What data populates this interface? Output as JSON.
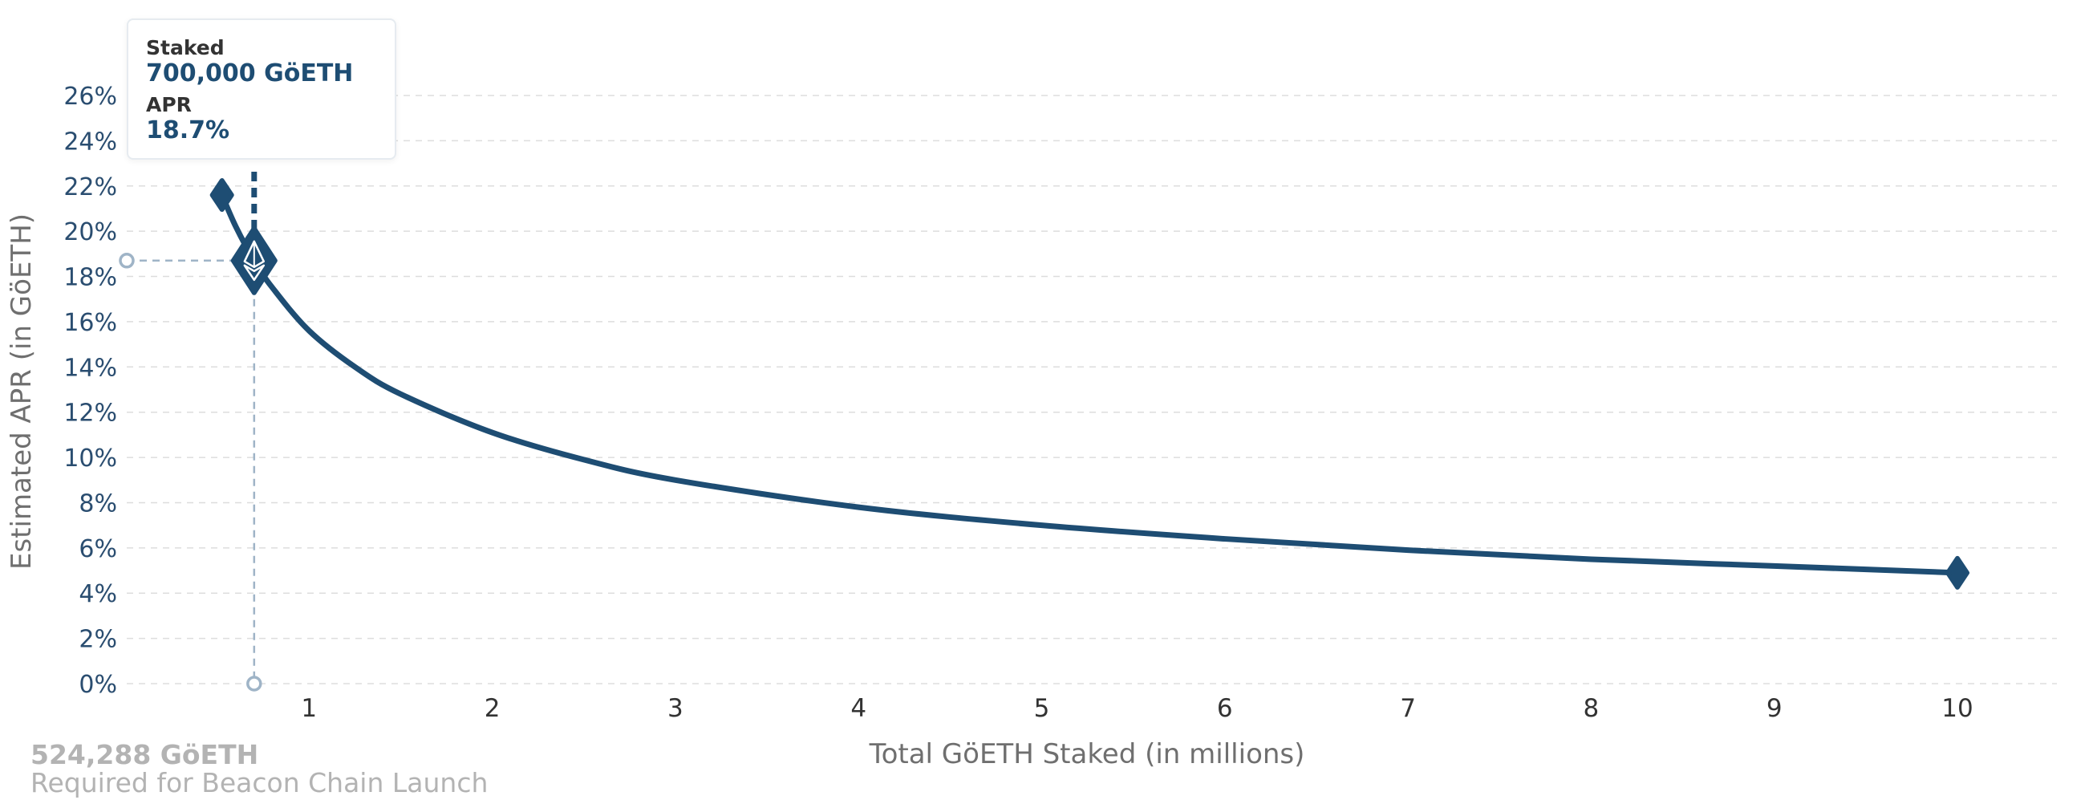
{
  "chart_data": {
    "type": "line",
    "xlabel": "Total GöETH Staked  (in millions)",
    "ylabel": "Estimated APR (in GöETH)",
    "xlim": [
      0,
      10.5
    ],
    "ylim": [
      0,
      26
    ],
    "x_ticks": [
      "1",
      "2",
      "3",
      "4",
      "5",
      "6",
      "7",
      "8",
      "9",
      "10"
    ],
    "y_ticks": [
      "0%",
      "2%",
      "4%",
      "6%",
      "8%",
      "10%",
      "12%",
      "14%",
      "16%",
      "18%",
      "20%",
      "22%",
      "24%",
      "26%"
    ],
    "grid": "horizontal dashed",
    "series": [
      {
        "x": [
          0.524288,
          0.6,
          0.7,
          0.8,
          1.0,
          1.25,
          1.5,
          2.0,
          2.5,
          3.0,
          4.0,
          5.0,
          6.0,
          7.0,
          8.0,
          9.0,
          10.0
        ],
        "y": [
          21.6,
          20.2,
          18.7,
          17.5,
          15.6,
          14.0,
          12.8,
          11.1,
          9.9,
          9.0,
          7.8,
          7.0,
          6.4,
          5.9,
          5.5,
          5.2,
          4.9
        ]
      }
    ],
    "endpoints": [
      {
        "x": 0.524288,
        "y": 21.6
      },
      {
        "x": 10.0,
        "y": 4.9
      }
    ],
    "highlight": {
      "x": 0.7,
      "y": 18.7
    },
    "footnote": {
      "value": "524,288 GöETH",
      "text": "Required for Beacon Chain Launch"
    },
    "tooltip": {
      "staked_label": "Staked",
      "staked_value": "700,000 GöETH",
      "apr_label": "APR",
      "apr_value": "18.7%"
    }
  },
  "colors": {
    "line": "#1e4d73",
    "y_ticks": "#2a4d70",
    "x_ticks": "#333333",
    "grid": "#dddddd",
    "guide": "#9fb4c7",
    "footnote": "#b3b3b3"
  },
  "icons": {
    "highlight_marker": "ethereum-diamond-icon",
    "endpoint_marker": "diamond-icon"
  }
}
